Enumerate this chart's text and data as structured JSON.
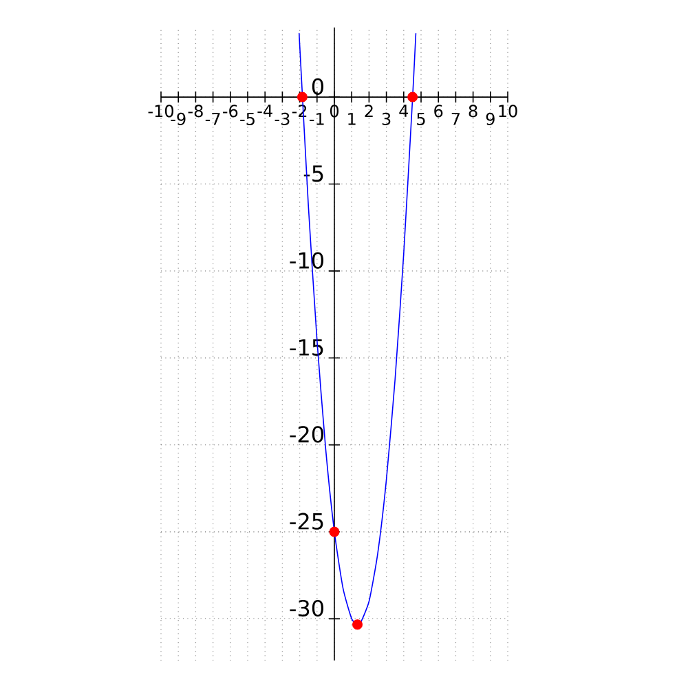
{
  "chart_data": {
    "type": "line",
    "xlim": [
      -10,
      10
    ],
    "ylim": [
      -32.4,
      4
    ],
    "xticks": [
      -10,
      -9,
      -8,
      -7,
      -6,
      -5,
      -4,
      -3,
      -2,
      -1,
      0,
      1,
      2,
      3,
      4,
      5,
      6,
      7,
      8,
      9,
      10
    ],
    "yticks": [
      -30,
      -25,
      -20,
      -15,
      -10,
      -5,
      0
    ],
    "grid": true,
    "series": [
      {
        "color": "#0000ff",
        "marker": "none",
        "x": [
          -2.03,
          -2,
          -1.5,
          -1,
          -0.5,
          0,
          0.5,
          1,
          1.33,
          1.5,
          2,
          2.5,
          3,
          3.5,
          4,
          4.5,
          4.7
        ],
        "values": [
          3.6,
          3,
          -6.25,
          -14,
          -20.25,
          -25,
          -28.25,
          -30,
          -30.33,
          -30.25,
          -29,
          -26.25,
          -22,
          -16.25,
          -9,
          -0.25,
          3.67
        ]
      },
      {
        "type": "scatter",
        "color": "#ff0000",
        "marker": "circle",
        "x": [
          -1.85,
          4.51,
          0,
          1.33
        ],
        "values": [
          0,
          0,
          -25,
          -30.33
        ]
      }
    ]
  }
}
